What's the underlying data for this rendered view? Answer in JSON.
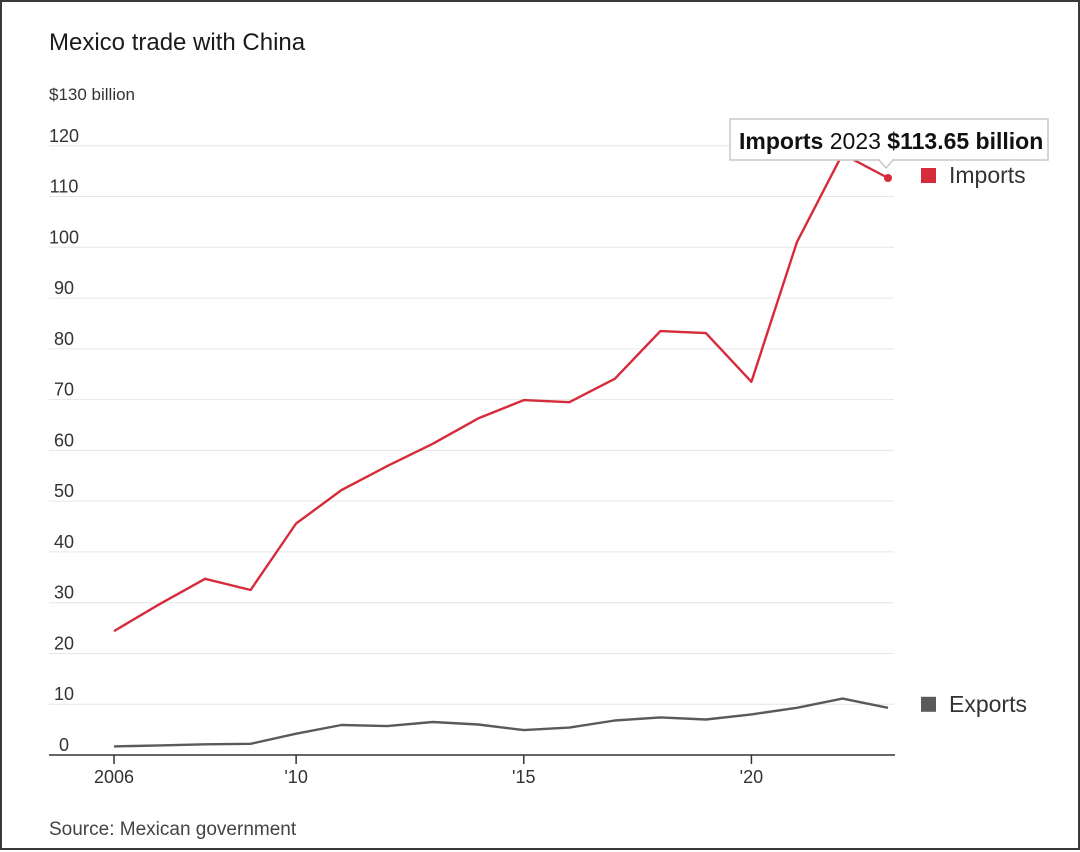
{
  "chart_data": {
    "type": "line",
    "title": "Mexico trade with China",
    "y_unit_label": "$130 billion",
    "ylim": [
      0,
      130
    ],
    "y_ticks": [
      0,
      10,
      20,
      30,
      40,
      50,
      60,
      70,
      80,
      90,
      100,
      110,
      120
    ],
    "xlim": [
      2006,
      2023
    ],
    "x_ticks": [
      {
        "value": 2006,
        "label": "2006"
      },
      {
        "value": 2010,
        "label": "'10"
      },
      {
        "value": 2015,
        "label": "'15"
      },
      {
        "value": 2020,
        "label": "'20"
      }
    ],
    "grid": true,
    "legend_position": "right",
    "x": [
      2006,
      2007,
      2008,
      2009,
      2010,
      2011,
      2012,
      2013,
      2014,
      2015,
      2016,
      2017,
      2018,
      2019,
      2020,
      2021,
      2022,
      2023
    ],
    "series": [
      {
        "name": "Imports",
        "color": "#d62b3a",
        "values": [
          24.4,
          29.7,
          34.7,
          32.5,
          45.6,
          52.2,
          56.9,
          61.3,
          66.3,
          69.9,
          69.5,
          74.1,
          83.5,
          83.1,
          73.5,
          101.0,
          118.4,
          113.65
        ]
      },
      {
        "name": "Exports",
        "color": "#5a5a5a",
        "values": [
          1.7,
          1.9,
          2.1,
          2.2,
          4.2,
          5.9,
          5.7,
          6.5,
          6.0,
          4.9,
          5.4,
          6.8,
          7.4,
          7.0,
          8.0,
          9.3,
          11.1,
          9.3
        ]
      }
    ],
    "annotation": {
      "series": "Imports",
      "x": 2023,
      "value": 113.65,
      "prefix": "Imports",
      "year_text": "2023",
      "value_text": "$113.65 billion"
    },
    "source": "Source: Mexican government"
  }
}
